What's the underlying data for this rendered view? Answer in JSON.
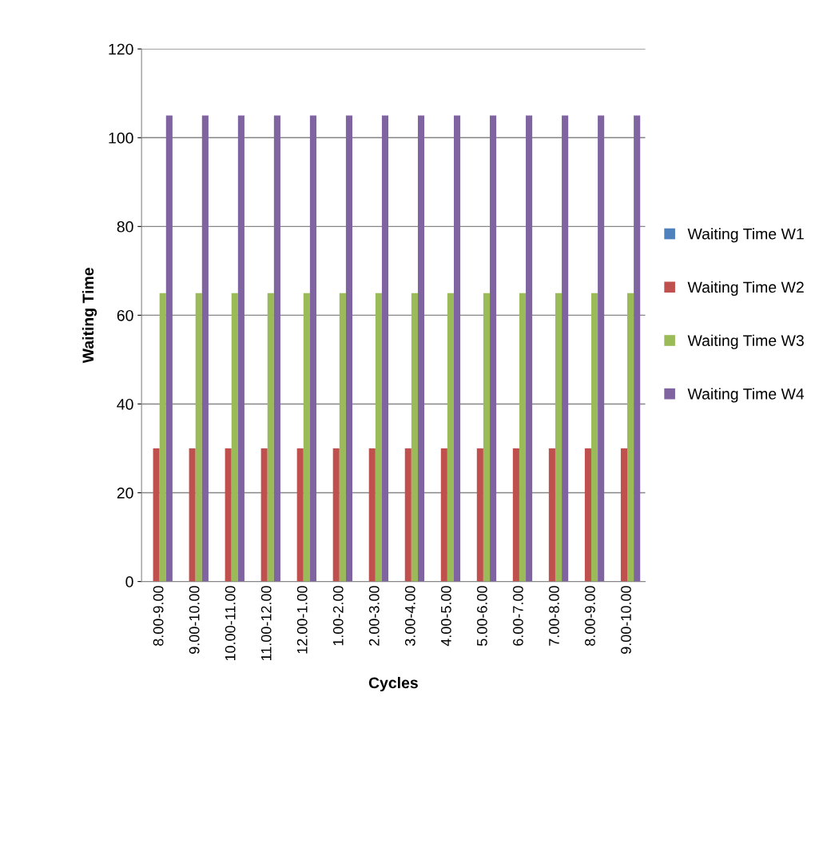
{
  "chart_data": {
    "type": "bar",
    "xlabel": "Cycles",
    "ylabel": "Waiting Time",
    "categories": [
      "8.00-9.00",
      "9.00-10.00",
      "10.00-11.00",
      "11.00-12.00",
      "12.00-1.00",
      "1.00-2.00",
      "2.00-3.00",
      "3.00-4.00",
      "4.00-5.00",
      "5.00-6.00",
      "6.00-7.00",
      "7.00-8.00",
      "8.00-9.00",
      "9.00-10.00"
    ],
    "series": [
      {
        "name": "Waiting Time W1",
        "color": "#4f81bd",
        "values": [
          0,
          0,
          0,
          0,
          0,
          0,
          0,
          0,
          0,
          0,
          0,
          0,
          0,
          0
        ]
      },
      {
        "name": "Waiting Time W2",
        "color": "#c0504d",
        "values": [
          30,
          30,
          30,
          30,
          30,
          30,
          30,
          30,
          30,
          30,
          30,
          30,
          30,
          30
        ]
      },
      {
        "name": "Waiting Time W3",
        "color": "#9bbb59",
        "values": [
          65,
          65,
          65,
          65,
          65,
          65,
          65,
          65,
          65,
          65,
          65,
          65,
          65,
          65
        ]
      },
      {
        "name": "Waiting Time W4",
        "color": "#8064a2",
        "values": [
          105,
          105,
          105,
          105,
          105,
          105,
          105,
          105,
          105,
          105,
          105,
          105,
          105,
          105
        ]
      }
    ],
    "ylim": [
      0,
      120
    ],
    "yticks": [
      0,
      20,
      40,
      60,
      80,
      100,
      120
    ],
    "grid": "y",
    "legend": "right"
  }
}
